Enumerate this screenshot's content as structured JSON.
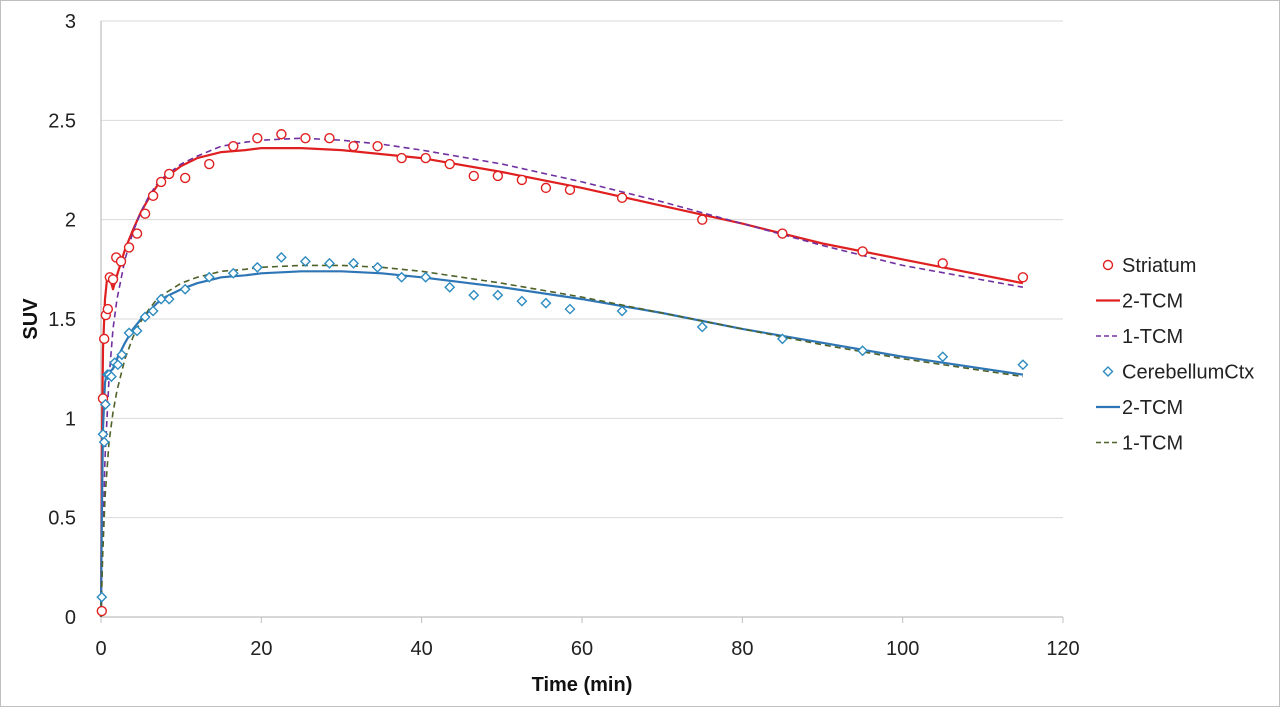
{
  "chart_data": {
    "type": "scatter",
    "title": "",
    "xlabel": "Time (min)",
    "ylabel": "SUV",
    "xlim": [
      0,
      120
    ],
    "ylim": [
      0,
      3
    ],
    "xticks": [
      0,
      20,
      40,
      60,
      80,
      100,
      120
    ],
    "yticks": [
      0,
      0.5,
      1,
      1.5,
      2,
      2.5,
      3
    ],
    "ytick_labels": [
      "0",
      "0.5",
      "1",
      "1.5",
      "2",
      "2.5",
      "3"
    ],
    "grid": "horizontal",
    "legend_position": "right",
    "series": [
      {
        "name": "Striatum",
        "kind": "points",
        "marker": "circle",
        "color": "#e02020",
        "x": [
          0.1,
          0.25,
          0.4,
          0.6,
          0.85,
          1.1,
          1.5,
          1.9,
          2.5,
          3.5,
          4.5,
          5.5,
          6.5,
          7.5,
          8.5,
          10.5,
          13.5,
          16.5,
          19.5,
          22.5,
          25.5,
          28.5,
          31.5,
          34.5,
          37.5,
          40.5,
          43.5,
          46.5,
          49.5,
          52.5,
          55.5,
          58.5,
          65,
          75,
          85,
          95,
          105,
          115
        ],
        "y": [
          0.03,
          1.1,
          1.4,
          1.52,
          1.55,
          1.71,
          1.7,
          1.81,
          1.79,
          1.86,
          1.93,
          2.03,
          2.12,
          2.19,
          2.23,
          2.21,
          2.28,
          2.37,
          2.41,
          2.43,
          2.41,
          2.41,
          2.37,
          2.37,
          2.31,
          2.31,
          2.28,
          2.22,
          2.22,
          2.2,
          2.16,
          2.15,
          2.11,
          2.0,
          1.93,
          1.84,
          1.78,
          1.71
        ]
      },
      {
        "name": "2-TCM",
        "kind": "line",
        "dash": "solid",
        "color": "#e02020",
        "x": [
          0,
          0.1,
          0.25,
          0.5,
          0.75,
          1.0,
          1.5,
          2,
          3,
          4,
          5,
          6,
          7,
          8,
          10,
          12,
          15,
          18,
          20,
          25,
          30,
          35,
          40,
          50,
          60,
          70,
          80,
          90,
          100,
          115
        ],
        "y": [
          0,
          0.8,
          1.35,
          1.6,
          1.7,
          1.72,
          1.65,
          1.72,
          1.85,
          1.95,
          2.04,
          2.11,
          2.17,
          2.21,
          2.27,
          2.31,
          2.34,
          2.35,
          2.36,
          2.36,
          2.35,
          2.33,
          2.31,
          2.24,
          2.16,
          2.07,
          1.98,
          1.88,
          1.8,
          1.68
        ]
      },
      {
        "name": "1-TCM",
        "kind": "line",
        "dash": "dashed",
        "color": "#7030a0",
        "x": [
          0,
          0.2,
          0.5,
          1,
          1.5,
          2,
          3,
          4,
          5,
          6,
          7,
          8,
          10,
          12,
          15,
          18,
          20,
          25,
          30,
          35,
          40,
          50,
          60,
          70,
          80,
          90,
          100,
          115
        ],
        "y": [
          0,
          0.35,
          0.8,
          1.2,
          1.45,
          1.6,
          1.8,
          1.94,
          2.04,
          2.12,
          2.18,
          2.22,
          2.28,
          2.32,
          2.37,
          2.39,
          2.4,
          2.41,
          2.4,
          2.38,
          2.35,
          2.28,
          2.19,
          2.09,
          1.98,
          1.87,
          1.77,
          1.66
        ]
      },
      {
        "name": "CerebellumCtx",
        "kind": "points",
        "marker": "diamond",
        "color": "#2e8bc0",
        "x": [
          0.1,
          0.25,
          0.4,
          0.55,
          0.8,
          1.0,
          1.3,
          1.7,
          2.1,
          2.6,
          3.5,
          4.5,
          5.5,
          6.5,
          7.5,
          8.5,
          10.5,
          13.5,
          16.5,
          19.5,
          22.5,
          25.5,
          28.5,
          31.5,
          34.5,
          37.5,
          40.5,
          43.5,
          46.5,
          49.5,
          52.5,
          55.5,
          58.5,
          65,
          75,
          85,
          95,
          105,
          115
        ],
        "y": [
          0.1,
          0.92,
          0.88,
          1.07,
          1.22,
          1.22,
          1.21,
          1.28,
          1.27,
          1.32,
          1.43,
          1.44,
          1.51,
          1.54,
          1.6,
          1.6,
          1.65,
          1.71,
          1.73,
          1.76,
          1.81,
          1.79,
          1.78,
          1.78,
          1.76,
          1.71,
          1.71,
          1.66,
          1.62,
          1.62,
          1.59,
          1.58,
          1.55,
          1.54,
          1.46,
          1.4,
          1.34,
          1.31,
          1.27
        ]
      },
      {
        "name": "2-TCM",
        "kind": "line",
        "dash": "solid",
        "color": "#2e75b6",
        "x": [
          0,
          0.1,
          0.25,
          0.5,
          0.75,
          1.0,
          1.5,
          2,
          3,
          4,
          5,
          6,
          7,
          8,
          10,
          12,
          15,
          18,
          20,
          25,
          30,
          35,
          40,
          50,
          60,
          70,
          80,
          90,
          100,
          115
        ],
        "y": [
          0,
          0.5,
          0.95,
          1.18,
          1.23,
          1.23,
          1.25,
          1.3,
          1.38,
          1.45,
          1.5,
          1.54,
          1.58,
          1.61,
          1.65,
          1.68,
          1.71,
          1.72,
          1.73,
          1.74,
          1.74,
          1.73,
          1.71,
          1.66,
          1.6,
          1.53,
          1.45,
          1.38,
          1.31,
          1.22
        ]
      },
      {
        "name": "1-TCM",
        "kind": "line",
        "dash": "dashed",
        "color": "#4f6228",
        "x": [
          0,
          0.2,
          0.5,
          1,
          1.5,
          2,
          3,
          4,
          5,
          6,
          7,
          8,
          10,
          12,
          15,
          18,
          20,
          25,
          30,
          35,
          40,
          50,
          60,
          70,
          80,
          90,
          100,
          115
        ],
        "y": [
          0,
          0.3,
          0.6,
          0.88,
          1.03,
          1.14,
          1.3,
          1.41,
          1.49,
          1.55,
          1.6,
          1.63,
          1.68,
          1.71,
          1.74,
          1.75,
          1.76,
          1.77,
          1.77,
          1.76,
          1.74,
          1.68,
          1.61,
          1.53,
          1.45,
          1.37,
          1.3,
          1.21
        ]
      }
    ]
  }
}
